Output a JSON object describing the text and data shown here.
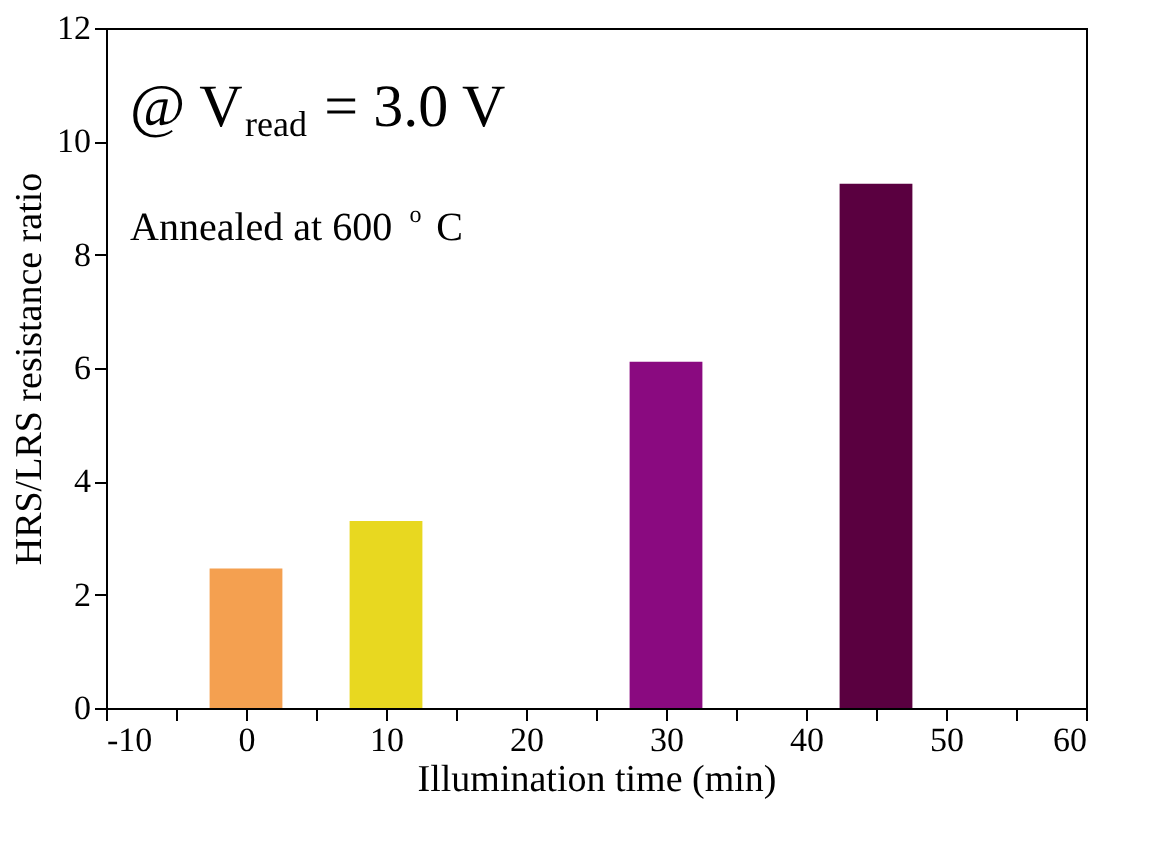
{
  "chart_data": {
    "type": "bar",
    "xlabel": "Illumination time (min)",
    "ylabel": "HRS/LRS resistance ratio",
    "x": [
      0,
      10,
      30,
      45
    ],
    "values": [
      2.46,
      3.3,
      6.11,
      9.25
    ],
    "colors": [
      "#f4a050",
      "#e8d820",
      "#8a0a80",
      "#5a0040"
    ],
    "xlim": [
      -10,
      60
    ],
    "xticks": [
      -10,
      {
        "value": -5,
        "label": null
      },
      0,
      {
        "value": 5,
        "label": null
      },
      10,
      {
        "value": 15,
        "label": null
      },
      20,
      {
        "value": 25,
        "label": null
      },
      30,
      {
        "value": 35,
        "label": null
      },
      40,
      {
        "value": 45,
        "label": null
      },
      50,
      {
        "value": 55,
        "label": null
      },
      60
    ],
    "ylim": [
      0,
      12
    ],
    "yticks": [
      0,
      2,
      4,
      6,
      8,
      10,
      12
    ],
    "grid": false,
    "annotations": [
      "@ V$_{read}$ = 3.0 V",
      "Annealed at 600 $^{o}$C"
    ]
  }
}
